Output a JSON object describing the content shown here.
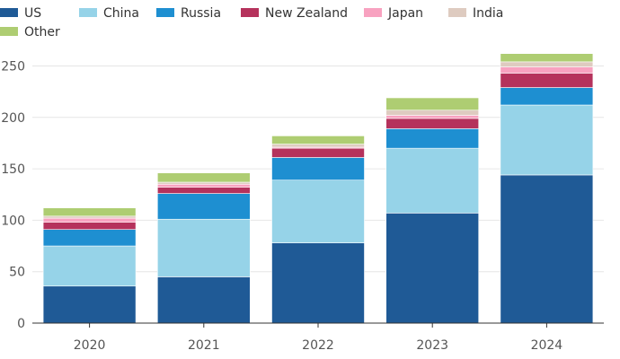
{
  "chart_data": {
    "type": "bar",
    "stacked": true,
    "categories": [
      "2020",
      "2021",
      "2022",
      "2023",
      "2024"
    ],
    "series": [
      {
        "name": "US",
        "color": "#1f5a96",
        "values": [
          36,
          45,
          78,
          107,
          144
        ]
      },
      {
        "name": "China",
        "color": "#96d3e8",
        "values": [
          39,
          56,
          61,
          63,
          68
        ]
      },
      {
        "name": "Russia",
        "color": "#1e8fd1",
        "values": [
          16,
          25,
          22,
          19,
          17
        ]
      },
      {
        "name": "New Zealand",
        "color": "#b5325c",
        "values": [
          7,
          6,
          9,
          10,
          14
        ]
      },
      {
        "name": "Japan",
        "color": "#f8a2c0",
        "values": [
          4,
          3,
          1,
          3,
          6
        ]
      },
      {
        "name": "India",
        "color": "#decbc0",
        "values": [
          2,
          2,
          3,
          5,
          5
        ]
      },
      {
        "name": "Other",
        "color": "#aecd72",
        "values": [
          8,
          9,
          8,
          12,
          8
        ]
      }
    ],
    "title": "",
    "xlabel": "",
    "ylabel": "",
    "ylim": [
      0,
      260
    ],
    "yticks": [
      0,
      50,
      100,
      150,
      200,
      250
    ],
    "grid": true,
    "legend": "top-left"
  }
}
